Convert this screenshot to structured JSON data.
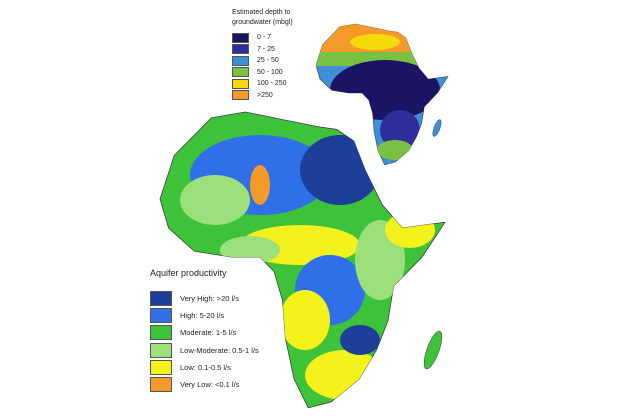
{
  "depth_legend": {
    "title": "Estimated depth to groundwater (mbgl)",
    "items": [
      {
        "label": "0 - 7",
        "color": "#1b1464"
      },
      {
        "label": "7 - 25",
        "color": "#2e2e9a"
      },
      {
        "label": "25 - 50",
        "color": "#3f8fd8"
      },
      {
        "label": "50 - 100",
        "color": "#7ac143"
      },
      {
        "label": "100 - 250",
        "color": "#f5d90a"
      },
      {
        "label": ">250",
        "color": "#f39a2a"
      }
    ]
  },
  "productivity_legend": {
    "title": "Aquifer productivity",
    "items": [
      {
        "label": "Very High: >20 l/s",
        "color": "#1d3f9a"
      },
      {
        "label": "High: 5-20 l/s",
        "color": "#2f6fe8"
      },
      {
        "label": "Moderate: 1-5 l/s",
        "color": "#3ec23a"
      },
      {
        "label": "Low-Moderate: 0.5-1 l/s",
        "color": "#9be07a"
      },
      {
        "label": "Low: 0.1-0.5 l/s",
        "color": "#f4f21c"
      },
      {
        "label": "Very Low: <0.1 l/s",
        "color": "#f39a2a"
      }
    ]
  }
}
